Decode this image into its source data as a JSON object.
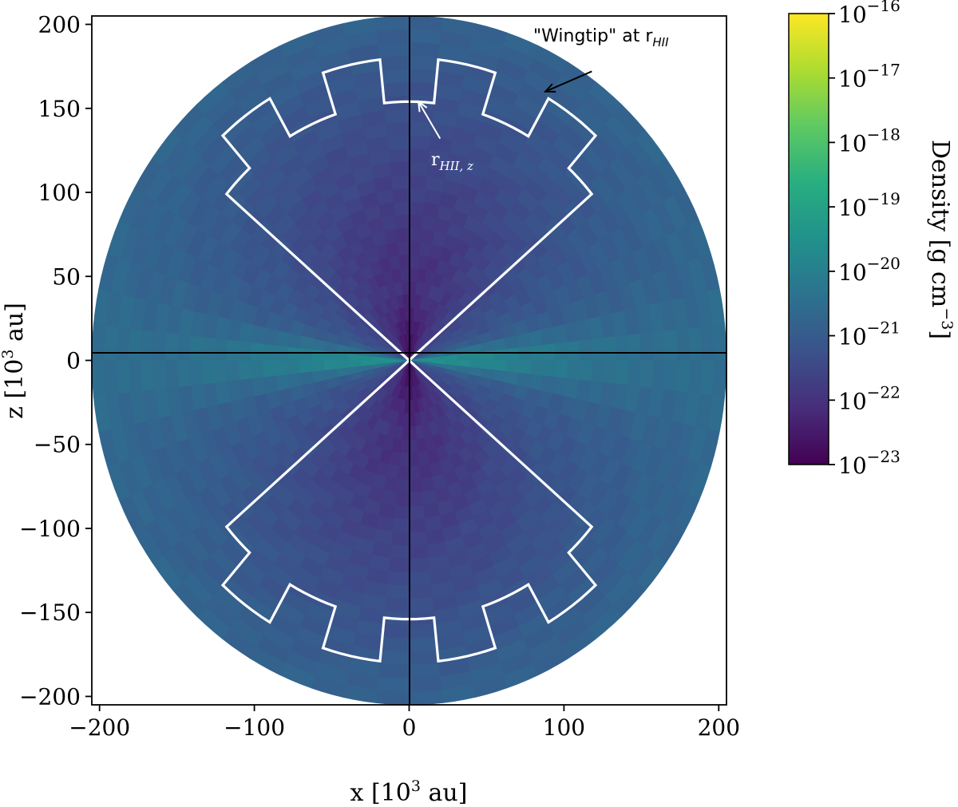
{
  "chart_data": {
    "type": "heatmap",
    "subtype": "polar density map with ionized-region outline",
    "xlabel": "x [10",
    "xlabel_sup": "3",
    "xlabel_tail": " au]",
    "ylabel": "z [10",
    "ylabel_sup": "3",
    "ylabel_tail": " au]",
    "xlim": [
      -205,
      205
    ],
    "ylim": [
      -205,
      205
    ],
    "x_ticks": [
      -200,
      -100,
      0,
      100,
      200
    ],
    "x_tick_labels": [
      "−200",
      "−100",
      "0",
      "100",
      "200"
    ],
    "y_ticks": [
      200,
      150,
      100,
      50,
      0,
      -50,
      -100,
      -150,
      -200
    ],
    "y_tick_labels": [
      "200",
      "150",
      "100",
      "50",
      "0",
      "−50",
      "−100",
      "−150",
      "−200"
    ],
    "r_max": 205,
    "colorbar": {
      "label": "Density [g cm",
      "label_sup": "−3",
      "label_tail": "]",
      "scale": "log",
      "min_exp": -23,
      "max_exp": -16,
      "colormap": "viridis",
      "ticks": [
        {
          "base": "10",
          "exp": "−16",
          "value": -16
        },
        {
          "base": "10",
          "exp": "−17",
          "value": -17
        },
        {
          "base": "10",
          "exp": "−18",
          "value": -18
        },
        {
          "base": "10",
          "exp": "−19",
          "value": -19
        },
        {
          "base": "10",
          "exp": "−20",
          "value": -20
        },
        {
          "base": "10",
          "exp": "−21",
          "value": -21
        },
        {
          "base": "10",
          "exp": "−22",
          "value": -22
        },
        {
          "base": "10",
          "exp": "−23",
          "value": -23
        }
      ]
    },
    "hii_outline": {
      "opening_half_angle_deg_from_axis": 50,
      "steps": [
        {
          "theta_from_deg": 0,
          "theta_to_deg": 6,
          "r": 154
        },
        {
          "theta_from_deg": 6,
          "theta_to_deg": 18,
          "r": 180
        },
        {
          "theta_from_deg": 18,
          "theta_to_deg": 30,
          "r": 154
        },
        {
          "theta_from_deg": 30,
          "theta_to_deg": 42,
          "r": 180
        },
        {
          "theta_from_deg": 42,
          "theta_to_deg": 50,
          "r": 154
        }
      ]
    },
    "density_model": {
      "background_log_density": -21.0,
      "cavity_log_density": -22.4,
      "disk_peak_log_density": -19.2,
      "core_cavity_log_density": -22.9
    },
    "annotations": [
      {
        "id": "wingtip",
        "text": "\"Wingtip\" at r",
        "sub": "HII",
        "arrow_from": [
          118,
          172
        ],
        "arrow_to": [
          88,
          160
        ]
      },
      {
        "id": "rhiiz",
        "text": "r",
        "sub": "HII, z",
        "arrow_from": [
          20,
          132
        ],
        "arrow_to": [
          6,
          154
        ]
      }
    ]
  }
}
